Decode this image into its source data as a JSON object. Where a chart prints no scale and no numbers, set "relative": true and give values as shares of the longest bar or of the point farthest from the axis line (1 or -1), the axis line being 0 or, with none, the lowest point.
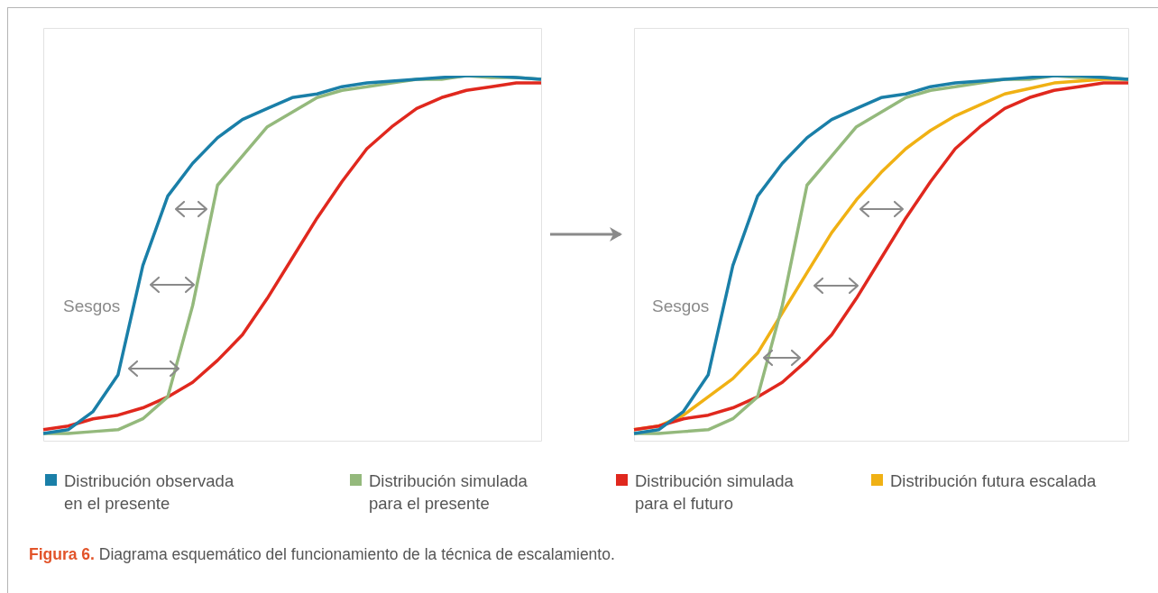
{
  "chart_data": [
    {
      "type": "line",
      "relative": true,
      "legend": false,
      "marker": "none",
      "grid": false,
      "categories": [
        null,
        null,
        null,
        null,
        null,
        null,
        null,
        null,
        null,
        null,
        null,
        null,
        null,
        null,
        null,
        null,
        null,
        null,
        null,
        null,
        null
      ],
      "series": [
        {
          "color": "#1a7fa8",
          "values": [
            0.02,
            0.03,
            0.08,
            0.18,
            0.48,
            0.67,
            0.76,
            0.83,
            0.88,
            0.91,
            0.94,
            0.95,
            0.97,
            0.98,
            0.985,
            0.99,
            0.995,
            1,
            1,
            0.995,
            0.99
          ]
        },
        {
          "color": "#94b97c",
          "values": [
            0.02,
            0.02,
            0.025,
            0.03,
            0.06,
            0.12,
            0.37,
            0.7,
            0.78,
            0.86,
            0.9,
            0.94,
            0.96,
            0.97,
            0.98,
            0.99,
            0.99,
            1,
            0.995,
            0.995,
            0.99
          ]
        },
        {
          "color": "#e0281e",
          "values": [
            0.03,
            0.04,
            0.06,
            0.07,
            0.09,
            0.12,
            0.16,
            0.22,
            0.29,
            0.39,
            0.5,
            0.61,
            0.71,
            0.8,
            0.86,
            0.91,
            0.94,
            0.96,
            0.97,
            0.98,
            0.98
          ]
        }
      ],
      "annotations": [
        "Sesgos"
      ]
    },
    {
      "type": "line",
      "relative": true,
      "legend": "bottom",
      "marker": "none",
      "grid": false,
      "categories": [
        null,
        null,
        null,
        null,
        null,
        null,
        null,
        null,
        null,
        null,
        null,
        null,
        null,
        null,
        null,
        null,
        null,
        null,
        null,
        null,
        null
      ],
      "series": [
        {
          "name": "Distribución observada en el presente",
          "color": "#1a7fa8",
          "values": [
            0.02,
            0.03,
            0.08,
            0.18,
            0.48,
            0.67,
            0.76,
            0.83,
            0.88,
            0.91,
            0.94,
            0.95,
            0.97,
            0.98,
            0.985,
            0.99,
            0.995,
            1,
            1,
            0.995,
            0.99
          ]
        },
        {
          "name": "Distribución simulada para el presente",
          "color": "#94b97c",
          "values": [
            0.02,
            0.02,
            0.025,
            0.03,
            0.06,
            0.12,
            0.37,
            0.7,
            0.78,
            0.86,
            0.9,
            0.94,
            0.96,
            0.97,
            0.98,
            0.99,
            0.99,
            1,
            0.995,
            0.995,
            0.99
          ]
        },
        {
          "name": "Distribución simulada para el futuro",
          "color": "#e0281e",
          "values": [
            0.03,
            0.04,
            0.06,
            0.07,
            0.09,
            0.12,
            0.16,
            0.22,
            0.29,
            0.39,
            0.5,
            0.61,
            0.71,
            0.8,
            0.86,
            0.91,
            0.94,
            0.96,
            0.97,
            0.98,
            0.98
          ]
        },
        {
          "name": "Distribución futura escalada",
          "color": "#f0b114",
          "values": [
            0.03,
            0.04,
            0.07,
            0.12,
            0.17,
            0.24,
            0.35,
            0.46,
            0.57,
            0.66,
            0.735,
            0.8,
            0.85,
            0.89,
            0.92,
            0.95,
            0.965,
            0.98,
            0.985,
            0.99,
            0.99
          ]
        }
      ],
      "annotations": [
        "Sesgos",
        "Figura 6.",
        "Diagrama esquemático del funcionamiento de la técnica de escalamiento."
      ]
    }
  ]
}
